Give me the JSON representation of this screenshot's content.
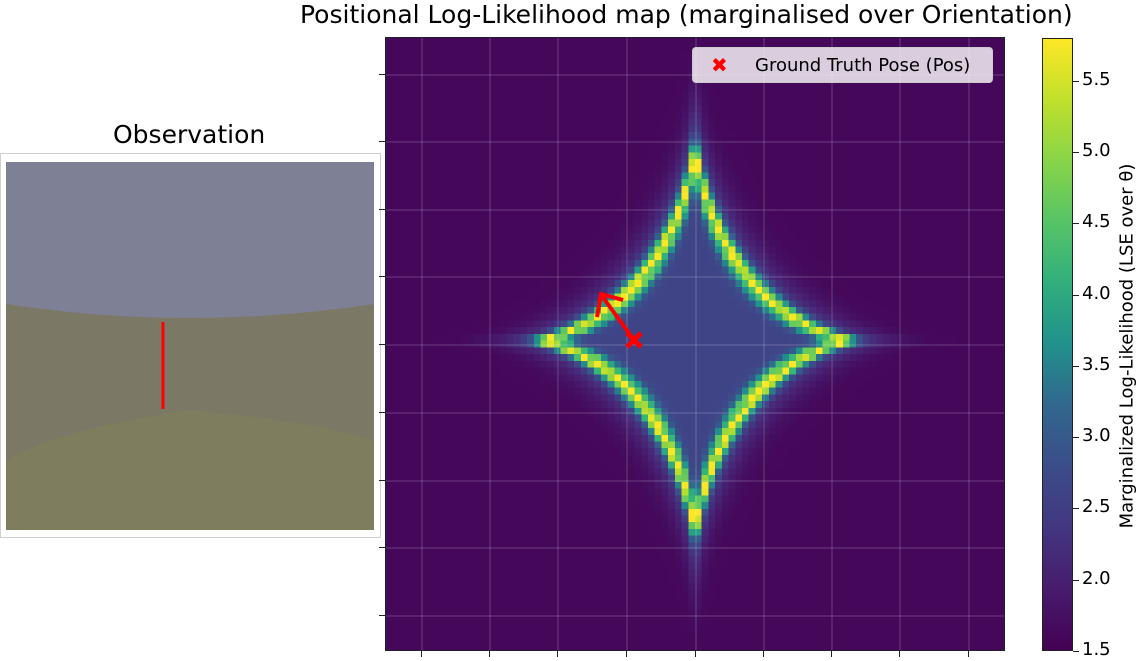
{
  "main_title": "Positional Log-Likelihood map (marginalised over Orientation)",
  "observation_title": "Observation",
  "legend": {
    "marker_glyph": "✖",
    "label": "Ground Truth Pose (Pos)",
    "marker_color": "#ff0000"
  },
  "colors": {
    "sky": "#7e8096",
    "ground_mid": "#7b7966",
    "ground_front": "#7e7d5e",
    "observation_line": "#ff0000",
    "arrow": "#ff0000"
  },
  "chart_data": {
    "type": "heatmap",
    "title": "Positional Log-Likelihood map (marginalised over Orientation)",
    "colormap": "viridis",
    "grid": true,
    "legend_position": "top-right",
    "value_range": [
      1.5,
      5.8
    ],
    "background_value": 1.6,
    "peak_shape": "four-pointed star (astroid) ridge centred in the map",
    "ground_truth_pose": {
      "marker": "x",
      "heading": "up-left"
    },
    "colorbar": {
      "label": "Marginalized Log-Likelihood (LSE over θ)",
      "ticks": [
        "1.5",
        "2.0",
        "2.5",
        "3.0",
        "3.5",
        "4.0",
        "4.5",
        "5.0",
        "5.5"
      ],
      "tick_values": [
        1.5,
        2.0,
        2.5,
        3.0,
        3.5,
        4.0,
        4.5,
        5.0,
        5.5
      ],
      "min": 1.5,
      "max": 5.8
    }
  }
}
